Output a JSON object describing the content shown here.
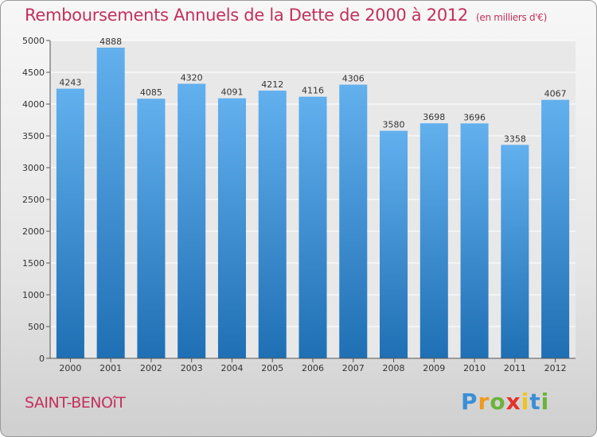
{
  "header": {
    "title": "Remboursements Annuels de la Dette de 2000 à 2012",
    "subtitle": "(en milliers d'€)"
  },
  "footer": {
    "place": "SAINT-BENOîT",
    "logo": [
      "P",
      "r",
      "o",
      "x",
      "i",
      "t",
      "i"
    ]
  },
  "colors": {
    "title": "#c3305d",
    "bar_top": "#62b0ee",
    "bar_bottom": "#1f6fb4"
  },
  "chart_data": {
    "type": "bar",
    "categories": [
      "2000",
      "2001",
      "2002",
      "2003",
      "2004",
      "2005",
      "2006",
      "2007",
      "2008",
      "2009",
      "2010",
      "2011",
      "2012"
    ],
    "values": [
      4243,
      4888,
      4085,
      4320,
      4091,
      4212,
      4116,
      4306,
      3580,
      3698,
      3696,
      3358,
      4067
    ],
    "ylim": [
      0,
      5000
    ],
    "yticks": [
      0,
      500,
      1000,
      1500,
      2000,
      2500,
      3000,
      3500,
      4000,
      4500,
      5000
    ],
    "grid": true,
    "data_labels": true
  }
}
